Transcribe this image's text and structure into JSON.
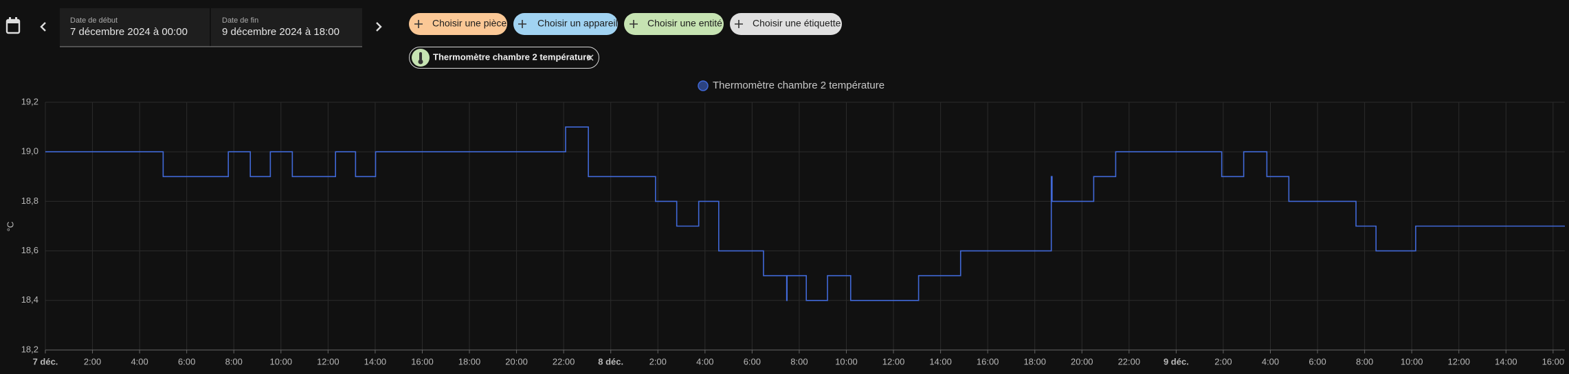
{
  "header": {
    "date_start_label": "Date de début",
    "date_start": "7 décembre 2024 à 00:00",
    "date_end_label": "Date de fin",
    "date_end": "9 décembre 2024 à 18:00"
  },
  "filters": [
    "Choisir une pièce",
    "Choisir un appareil",
    "Choisir une entité",
    "Choisir une étiquette"
  ],
  "selected_entity": "Thermomètre chambre 2 température",
  "chart_data": {
    "type": "line",
    "y_label": "°C",
    "grid": true,
    "step": true,
    "x": [
      "2024-12-07T00:00",
      "2024-12-07T05:00",
      "2024-12-07T07:46",
      "2024-12-07T08:42",
      "2024-12-07T09:33",
      "2024-12-07T10:29",
      "2024-12-07T12:19",
      "2024-12-07T13:10",
      "2024-12-07T14:01",
      "2024-12-07T22:05",
      "2024-12-07T23:03",
      "2024-12-08T01:54",
      "2024-12-08T02:48",
      "2024-12-08T03:44",
      "2024-12-08T04:35",
      "2024-12-08T06:29",
      "2024-12-08T07:28",
      "2024-12-08T07:29",
      "2024-12-08T08:18",
      "2024-12-08T09:12",
      "2024-12-08T10:11",
      "2024-12-08T13:04",
      "2024-12-08T14:51",
      "2024-12-08T18:42",
      "2024-12-08T18:44",
      "2024-12-08T20:30",
      "2024-12-08T21:26",
      "2024-12-09T01:56",
      "2024-12-09T02:52",
      "2024-12-09T03:51",
      "2024-12-09T04:47",
      "2024-12-09T07:38",
      "2024-12-09T08:29",
      "2024-12-09T10:10",
      "2024-12-09T16:30"
    ],
    "series": [
      {
        "name": "Thermomètre chambre 2 température",
        "color": "#4169d8",
        "values": [
          19.0,
          18.9,
          19.0,
          18.9,
          19.0,
          18.9,
          19.0,
          18.9,
          19.0,
          19.1,
          18.9,
          18.8,
          18.7,
          18.8,
          18.6,
          18.5,
          18.4,
          18.5,
          18.4,
          18.5,
          18.4,
          18.5,
          18.6,
          18.9,
          18.8,
          18.9,
          19.0,
          18.9,
          19.0,
          18.9,
          18.8,
          18.7,
          18.6,
          18.7,
          18.7
        ]
      }
    ],
    "xlim": [
      "2024-12-07T00:00",
      "2024-12-09T16:30"
    ],
    "ylim": [
      18.2,
      19.2
    ],
    "yticks": [
      {
        "value": 18.2,
        "label": "18,2"
      },
      {
        "value": 18.4,
        "label": "18,4"
      },
      {
        "value": 18.6,
        "label": "18,6"
      },
      {
        "value": 18.8,
        "label": "18,8"
      },
      {
        "value": 19.0,
        "label": "19,0"
      },
      {
        "value": 19.2,
        "label": "19,2"
      }
    ],
    "xticks": [
      {
        "value": "2024-12-07T00:00",
        "label": "7 déc."
      },
      {
        "value": "2024-12-07T02:00",
        "label": "2:00"
      },
      {
        "value": "2024-12-07T04:00",
        "label": "4:00"
      },
      {
        "value": "2024-12-07T06:00",
        "label": "6:00"
      },
      {
        "value": "2024-12-07T08:00",
        "label": "8:00"
      },
      {
        "value": "2024-12-07T10:00",
        "label": "10:00"
      },
      {
        "value": "2024-12-07T12:00",
        "label": "12:00"
      },
      {
        "value": "2024-12-07T14:00",
        "label": "14:00"
      },
      {
        "value": "2024-12-07T16:00",
        "label": "16:00"
      },
      {
        "value": "2024-12-07T18:00",
        "label": "18:00"
      },
      {
        "value": "2024-12-07T20:00",
        "label": "20:00"
      },
      {
        "value": "2024-12-07T22:00",
        "label": "22:00"
      },
      {
        "value": "2024-12-08T00:00",
        "label": "8 déc."
      },
      {
        "value": "2024-12-08T02:00",
        "label": "2:00"
      },
      {
        "value": "2024-12-08T04:00",
        "label": "4:00"
      },
      {
        "value": "2024-12-08T06:00",
        "label": "6:00"
      },
      {
        "value": "2024-12-08T08:00",
        "label": "8:00"
      },
      {
        "value": "2024-12-08T10:00",
        "label": "10:00"
      },
      {
        "value": "2024-12-08T12:00",
        "label": "12:00"
      },
      {
        "value": "2024-12-08T14:00",
        "label": "14:00"
      },
      {
        "value": "2024-12-08T16:00",
        "label": "16:00"
      },
      {
        "value": "2024-12-08T18:00",
        "label": "18:00"
      },
      {
        "value": "2024-12-08T20:00",
        "label": "20:00"
      },
      {
        "value": "2024-12-08T22:00",
        "label": "22:00"
      },
      {
        "value": "2024-12-09T00:00",
        "label": "9 déc."
      },
      {
        "value": "2024-12-09T02:00",
        "label": "2:00"
      },
      {
        "value": "2024-12-09T04:00",
        "label": "4:00"
      },
      {
        "value": "2024-12-09T06:00",
        "label": "6:00"
      },
      {
        "value": "2024-12-09T08:00",
        "label": "8:00"
      },
      {
        "value": "2024-12-09T10:00",
        "label": "10:00"
      },
      {
        "value": "2024-12-09T12:00",
        "label": "12:00"
      },
      {
        "value": "2024-12-09T14:00",
        "label": "14:00"
      },
      {
        "value": "2024-12-09T16:00",
        "label": "16:00"
      }
    ]
  }
}
